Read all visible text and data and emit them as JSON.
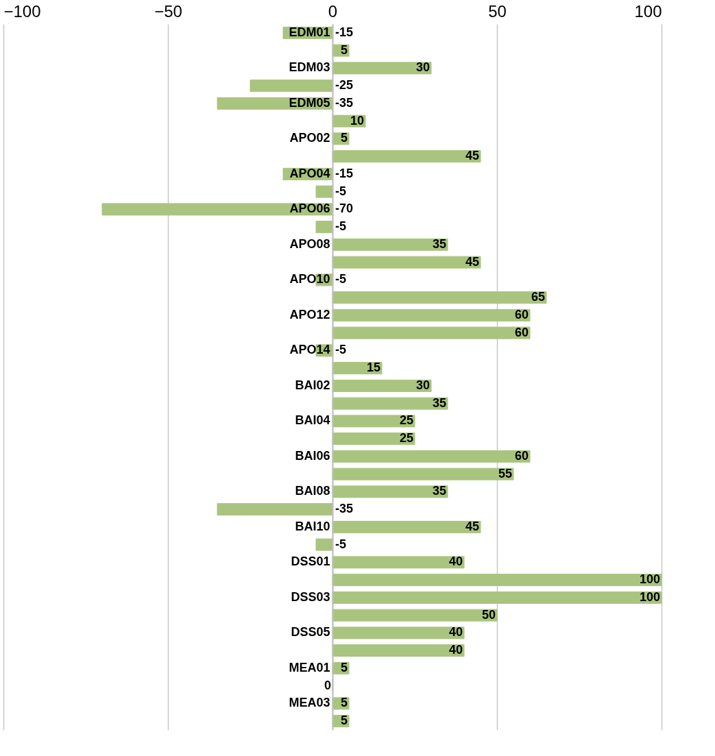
{
  "chart_data": {
    "type": "bar",
    "orientation": "horizontal",
    "categories": [
      "EDM01",
      null,
      "EDM03",
      null,
      "EDM05",
      null,
      "APO02",
      null,
      "APO04",
      null,
      "APO06",
      null,
      "APO08",
      null,
      "APO10",
      null,
      "APO12",
      null,
      "APO14",
      null,
      "BAI02",
      null,
      "BAI04",
      null,
      "BAI06",
      null,
      "BAI08",
      null,
      "BAI10",
      null,
      "DSS01",
      null,
      "DSS03",
      null,
      "DSS05",
      null,
      "MEA01",
      null,
      "MEA03",
      null
    ],
    "values": [
      -15,
      5,
      30,
      -25,
      -35,
      10,
      5,
      45,
      -15,
      -5,
      -70,
      -5,
      35,
      45,
      -5,
      65,
      60,
      60,
      -5,
      15,
      30,
      35,
      25,
      25,
      60,
      55,
      35,
      -35,
      45,
      -5,
      40,
      100,
      100,
      50,
      40,
      40,
      5,
      0,
      5,
      5
    ],
    "color": "#a9c47f",
    "xlim": [
      -100,
      100
    ],
    "xticks": [
      -100,
      -50,
      0,
      50,
      100
    ],
    "grid": "x",
    "data_labels": true
  }
}
